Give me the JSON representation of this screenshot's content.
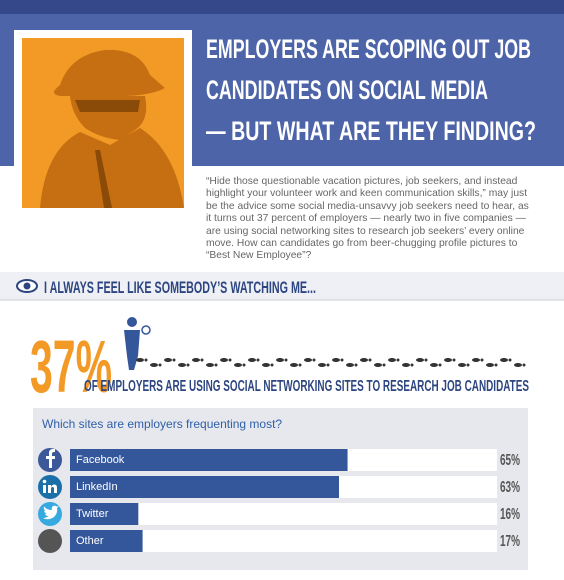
{
  "header": {
    "title_lines": [
      "EMPLOYERS ARE SCOPING OUT JOB",
      "CANDIDATES ON SOCIAL MEDIA",
      "— BUT WHAT ARE THEY FINDING?"
    ],
    "intro": "“Hide those questionable vacation pictures, job seekers, and instead highlight your volunteer work and keen communication skills,” may just be the advice some social media-unsavvy job seekers need to hear, as it turns out 37 percent of employers — nearly two in five companies — are using social networking sites to research job seekers’ every online move. How can candidates go from beer-chugging profile pictures to “Best New Employee”?"
  },
  "section": {
    "title": "I ALWAYS FEEL LIKE SOMEBODY’S WATCHING ME..."
  },
  "stat": {
    "value": "37%",
    "caption": "OF EMPLOYERS ARE USING SOCIAL NETWORKING SITES TO RESEARCH JOB CANDIDATES"
  },
  "chart_data": {
    "type": "bar",
    "orientation": "horizontal",
    "title": "Which sites are employers frequenting most?",
    "categories": [
      "Facebook",
      "LinkedIn",
      "Twitter",
      "Other"
    ],
    "values": [
      65,
      63,
      16,
      17
    ],
    "value_labels": [
      "65%",
      "63%",
      "16%",
      "17%"
    ],
    "color": "#34579c",
    "xlim": [
      0,
      100
    ]
  }
}
